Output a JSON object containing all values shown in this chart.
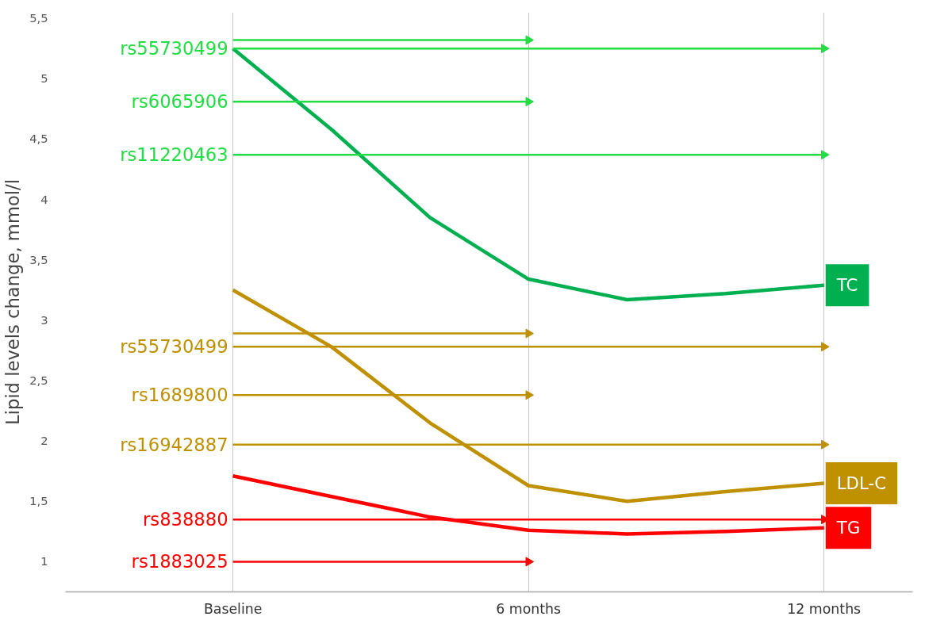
{
  "chart_data": {
    "type": "line",
    "ylabel": "Lipid levels change, mmol/l",
    "xlim": [
      -3.4,
      13.8
    ],
    "ylim": [
      0.75,
      5.55
    ],
    "xticks": [
      {
        "value": 0,
        "label": "Baseline"
      },
      {
        "value": 6,
        "label": "6 months"
      },
      {
        "value": 12,
        "label": "12 months"
      }
    ],
    "yticks": [
      {
        "value": 1,
        "label": "1"
      },
      {
        "value": 1.5,
        "label": "1,5"
      },
      {
        "value": 2,
        "label": "2"
      },
      {
        "value": 2.5,
        "label": "2,5"
      },
      {
        "value": 3,
        "label": "3"
      },
      {
        "value": 3.5,
        "label": "3,5"
      },
      {
        "value": 4,
        "label": "4"
      },
      {
        "value": 4.5,
        "label": "4,5"
      },
      {
        "value": 5,
        "label": "5"
      },
      {
        "value": 5.5,
        "label": "5,5"
      }
    ],
    "grid": "x",
    "series": [
      {
        "name": "TC",
        "color": "#00b050",
        "x": [
          0,
          2,
          4,
          6,
          8,
          10,
          12
        ],
        "values": [
          5.25,
          4.58,
          3.85,
          3.34,
          3.17,
          3.22,
          3.29
        ]
      },
      {
        "name": "LDL-C",
        "color": "#bf9000",
        "x": [
          0,
          2,
          4,
          6,
          8,
          10,
          12
        ],
        "values": [
          3.25,
          2.78,
          2.15,
          1.63,
          1.5,
          1.58,
          1.65
        ]
      },
      {
        "name": "TG",
        "color": "#ff0000",
        "x": [
          0,
          2,
          4,
          6,
          8,
          10,
          12
        ],
        "values": [
          1.71,
          1.54,
          1.37,
          1.26,
          1.23,
          1.25,
          1.28
        ]
      },
      {
        "color": "#22dd44",
        "marker": "triangle",
        "x": [
          0,
          6
        ],
        "values": [
          5.32,
          5.32
        ]
      },
      {
        "name": "rs55730499",
        "color": "#22dd44",
        "marker": "triangle",
        "x": [
          0,
          12
        ],
        "values": [
          5.25,
          5.25
        ]
      },
      {
        "name": "rs6065906",
        "color": "#22dd44",
        "marker": "triangle",
        "x": [
          0,
          6
        ],
        "values": [
          4.81,
          4.81
        ]
      },
      {
        "name": "rs11220463",
        "color": "#22dd44",
        "marker": "triangle",
        "x": [
          0,
          12
        ],
        "values": [
          4.37,
          4.37
        ]
      },
      {
        "color": "#bf9000",
        "marker": "triangle",
        "x": [
          0,
          6
        ],
        "values": [
          2.89,
          2.89
        ]
      },
      {
        "name": "rs55730499",
        "color": "#bf9000",
        "marker": "triangle",
        "x": [
          0,
          12
        ],
        "values": [
          2.78,
          2.78
        ]
      },
      {
        "name": "rs1689800",
        "color": "#bf9000",
        "marker": "triangle",
        "x": [
          0,
          6
        ],
        "values": [
          2.38,
          2.38
        ]
      },
      {
        "name": "rs16942887",
        "color": "#bf9000",
        "marker": "triangle",
        "x": [
          0,
          12
        ],
        "values": [
          1.97,
          1.97
        ]
      },
      {
        "name": "rs838880",
        "color": "#ff0000",
        "marker": "triangle",
        "x": [
          0,
          12
        ],
        "values": [
          1.35,
          1.35
        ]
      },
      {
        "name": "rs1883025",
        "color": "#ff0000",
        "marker": "triangle",
        "x": [
          0,
          6
        ],
        "values": [
          1.0,
          1.0
        ]
      }
    ]
  }
}
